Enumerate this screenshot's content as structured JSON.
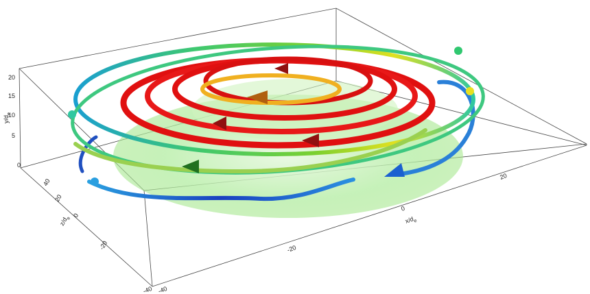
{
  "axes": {
    "y": {
      "label": "y/d",
      "label_sub": "e",
      "ticks": [
        "20",
        "15",
        "10",
        "5",
        "0"
      ]
    },
    "z": {
      "label": "z/d",
      "label_sub": "e",
      "ticks": [
        "40",
        "20",
        "0",
        "-20",
        "-40"
      ]
    },
    "x": {
      "label": "x/d",
      "label_sub": "e",
      "ticks": [
        "-40",
        "-20",
        "0",
        "20"
      ]
    }
  }
}
